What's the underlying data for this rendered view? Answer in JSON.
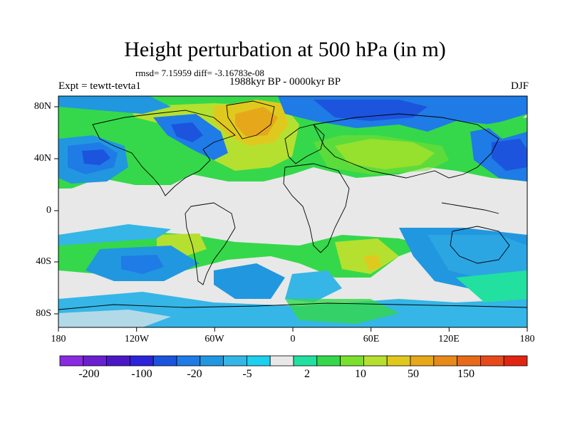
{
  "title": "Height perturbation at 500 hPa (in m)",
  "stats": "rmsd= 7.15959 diff= -3.16783e-08",
  "experiment": "Expt = tewtt-tevta1",
  "period": "1988kyr BP - 0000kyr BP",
  "season": "DJF",
  "y_ticks": [
    "80N",
    "40N",
    "0",
    "40S",
    "80S"
  ],
  "x_ticks": [
    "180",
    "120W",
    "60W",
    "0",
    "60E",
    "120E",
    "180"
  ],
  "colorbar": {
    "colors": [
      "#8a2be2",
      "#6a1fd0",
      "#4b17c6",
      "#2d23d8",
      "#1c54de",
      "#1f7be6",
      "#2197e0",
      "#35b6e6",
      "#1ed0ee",
      "#e8e8e8",
      "#22e0a0",
      "#35d84a",
      "#7be02d",
      "#b5e030",
      "#e0c91e",
      "#e6a81a",
      "#e68a1a",
      "#e66a1a",
      "#e64a1a",
      "#e02612"
    ],
    "labels": [
      "-200",
      "-100",
      "-20",
      "-5",
      "2",
      "10",
      "50",
      "150"
    ]
  }
}
